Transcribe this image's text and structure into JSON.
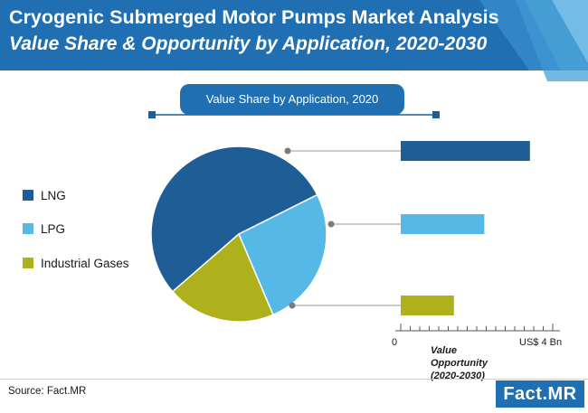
{
  "header": {
    "title": "Cryogenic Submerged Motor Pumps Market Analysis",
    "subtitle": "Value Share & Opportunity by Application, 2020-2030"
  },
  "pie_title": "Value Share by Application, 2020",
  "bar_axis": {
    "start_label": "0",
    "end_label": "US$ 4 Bn",
    "caption_line1": "Value Opportunity",
    "caption_line2": "(2020-2030)"
  },
  "source": "Source: Fact.MR",
  "logo": "Fact.MR",
  "colors": {
    "header": "#1f6fb2",
    "lng": "#1f5d96",
    "lpg": "#55b8e6",
    "industrial_gases": "#aeb01c"
  },
  "chart_data": [
    {
      "type": "pie",
      "title": "Value Share by Application, 2020",
      "categories": [
        "LNG",
        "LPG",
        "Industrial Gases"
      ],
      "values": [
        54,
        26,
        20
      ],
      "colors": [
        "#1f5d96",
        "#55b8e6",
        "#aeb01c"
      ]
    },
    {
      "type": "bar",
      "orientation": "horizontal",
      "categories": [
        "LNG",
        "LPG",
        "Industrial Gases"
      ],
      "values": [
        3.4,
        2.2,
        1.4
      ],
      "xlim": [
        0,
        4
      ],
      "xlabel": "Value Opportunity (2020-2030)",
      "colors": [
        "#1f5d96",
        "#55b8e6",
        "#aeb01c"
      ]
    }
  ]
}
